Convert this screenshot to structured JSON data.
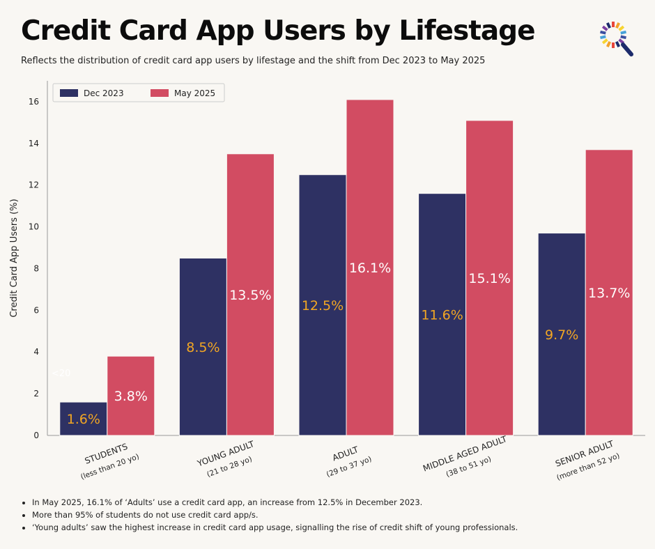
{
  "header": {
    "title": "Credit Card App Users by Lifestage",
    "subtitle": "Reflects the distribution of credit card app users by lifestage and the shift from Dec 2023 to May 2025"
  },
  "logo": {
    "icon": "search-magnifier-logo-icon",
    "colors": [
      "#e8463a",
      "#f2a12b",
      "#f7d431",
      "#46a1d8",
      "#3b4fa0",
      "#7b3fa0",
      "#1d2b6b"
    ]
  },
  "chart_data": {
    "type": "bar",
    "categories": [
      "STUDENTS",
      "YOUNG ADULT",
      "ADULT",
      "MIDDLE AGED ADULT",
      "SENIOR ADULT"
    ],
    "category_sublabels": [
      "(less than 20  yo)",
      "(21 to 28 yo)",
      "(29  to  37 yo)",
      "(38  to  51 yo)",
      "(more than 52 yo)"
    ],
    "series": [
      {
        "name": "Dec 2023",
        "values": [
          1.6,
          8.5,
          12.5,
          11.6,
          9.7
        ],
        "labels": [
          "1.6%",
          "8.5%",
          "12.5%",
          "11.6%",
          "9.7%"
        ],
        "color": "#2e3163",
        "label_color": "#f2a623"
      },
      {
        "name": "May 2025",
        "values": [
          3.8,
          13.5,
          16.1,
          15.1,
          13.7
        ],
        "labels": [
          "3.8%",
          "13.5%",
          "16.1%",
          "15.1%",
          "13.7%"
        ],
        "color": "#d24c62",
        "label_color": "#ffffff"
      }
    ],
    "annotation": "<20",
    "ylabel": "Credit Card App Users (%)",
    "xlabel": "",
    "ylim": [
      0,
      17
    ],
    "yticks": [
      0,
      2,
      4,
      6,
      8,
      10,
      12,
      14,
      16
    ],
    "grid": false,
    "legend": "top-left"
  },
  "notes": [
    "In May 2025, 16.1% of ‘Adults’ use a credit card app, an increase from 12.5% in December 2023.",
    "More than 95% of students do not use credit card app/s.",
    "‘Young adults’ saw the highest increase in credit card app usage, signalling the rise of credit shift of young professionals."
  ]
}
